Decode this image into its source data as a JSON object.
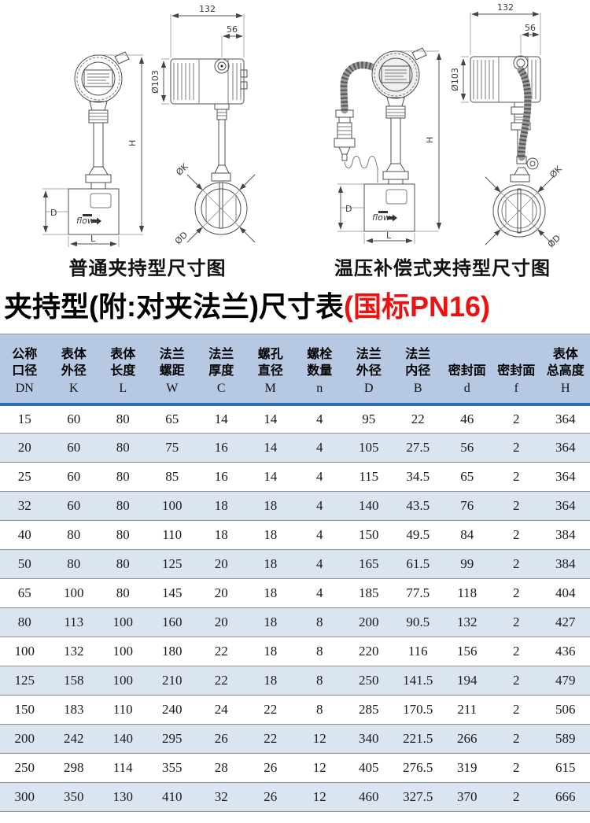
{
  "colors": {
    "title_red": "#ee1111",
    "header_bg": "#b7c9e2",
    "stripe_bg": "#dbe5f1",
    "header_rule_blue": "#2e6cb3",
    "row_rule_gray": "#8c8c8c",
    "drawing_line": "#4f4f4f"
  },
  "drawings": {
    "left": {
      "caption": "普通夹持型尺寸图",
      "labels": {
        "top_width": "132",
        "knob_offset": "56",
        "housing_dia": "Ø103",
        "total_height": "H",
        "body_height": "D",
        "body_length": "L",
        "flange_k": "ØK",
        "flange_d": "ØD",
        "flow": "flow"
      }
    },
    "right": {
      "caption": "温压补偿式夹持型尺寸图",
      "labels": {
        "top_width": "132",
        "knob_offset": "56",
        "housing_dia": "Ø103",
        "total_height": "H",
        "body_height": "D",
        "body_length": "L",
        "flange_k": "ØK",
        "flange_d": "ØD",
        "flow": "flow"
      }
    }
  },
  "title": {
    "black_part": "夹持型(附:对夹法兰)尺寸表",
    "red_part": "(国标PN16)"
  },
  "table": {
    "columns": [
      {
        "cn1": "公称",
        "cn2": "口径",
        "letter": "DN"
      },
      {
        "cn1": "表体",
        "cn2": "外径",
        "letter": "K"
      },
      {
        "cn1": "表体",
        "cn2": "长度",
        "letter": "L"
      },
      {
        "cn1": "法兰",
        "cn2": "螺距",
        "letter": "W"
      },
      {
        "cn1": "法兰",
        "cn2": "厚度",
        "letter": "C"
      },
      {
        "cn1": "螺孔",
        "cn2": "直径",
        "letter": "M"
      },
      {
        "cn1": "螺栓",
        "cn2": "数量",
        "letter": "n"
      },
      {
        "cn1": "法兰",
        "cn2": "外径",
        "letter": "D"
      },
      {
        "cn1": "法兰",
        "cn2": "内径",
        "letter": "B"
      },
      {
        "cn1": "",
        "cn2": "密封面",
        "letter": "d"
      },
      {
        "cn1": "",
        "cn2": "密封面",
        "letter": "f"
      },
      {
        "cn1": "表体",
        "cn2": "总高度",
        "letter": "H"
      }
    ],
    "rows": [
      [
        "15",
        "60",
        "80",
        "65",
        "14",
        "14",
        "4",
        "95",
        "22",
        "46",
        "2",
        "364"
      ],
      [
        "20",
        "60",
        "80",
        "75",
        "16",
        "14",
        "4",
        "105",
        "27.5",
        "56",
        "2",
        "364"
      ],
      [
        "25",
        "60",
        "80",
        "85",
        "16",
        "14",
        "4",
        "115",
        "34.5",
        "65",
        "2",
        "364"
      ],
      [
        "32",
        "60",
        "80",
        "100",
        "18",
        "18",
        "4",
        "140",
        "43.5",
        "76",
        "2",
        "364"
      ],
      [
        "40",
        "80",
        "80",
        "110",
        "18",
        "18",
        "4",
        "150",
        "49.5",
        "84",
        "2",
        "384"
      ],
      [
        "50",
        "80",
        "80",
        "125",
        "20",
        "18",
        "4",
        "165",
        "61.5",
        "99",
        "2",
        "384"
      ],
      [
        "65",
        "100",
        "80",
        "145",
        "20",
        "18",
        "4",
        "185",
        "77.5",
        "118",
        "2",
        "404"
      ],
      [
        "80",
        "113",
        "100",
        "160",
        "20",
        "18",
        "8",
        "200",
        "90.5",
        "132",
        "2",
        "427"
      ],
      [
        "100",
        "132",
        "100",
        "180",
        "22",
        "18",
        "8",
        "220",
        "116",
        "156",
        "2",
        "436"
      ],
      [
        "125",
        "158",
        "100",
        "210",
        "22",
        "18",
        "8",
        "250",
        "141.5",
        "194",
        "2",
        "479"
      ],
      [
        "150",
        "183",
        "110",
        "240",
        "24",
        "22",
        "8",
        "285",
        "170.5",
        "211",
        "2",
        "506"
      ],
      [
        "200",
        "242",
        "140",
        "295",
        "26",
        "22",
        "12",
        "340",
        "221.5",
        "266",
        "2",
        "589"
      ],
      [
        "250",
        "298",
        "114",
        "355",
        "28",
        "26",
        "12",
        "405",
        "276.5",
        "319",
        "2",
        "615"
      ],
      [
        "300",
        "350",
        "130",
        "410",
        "32",
        "26",
        "12",
        "460",
        "327.5",
        "370",
        "2",
        "666"
      ]
    ]
  }
}
